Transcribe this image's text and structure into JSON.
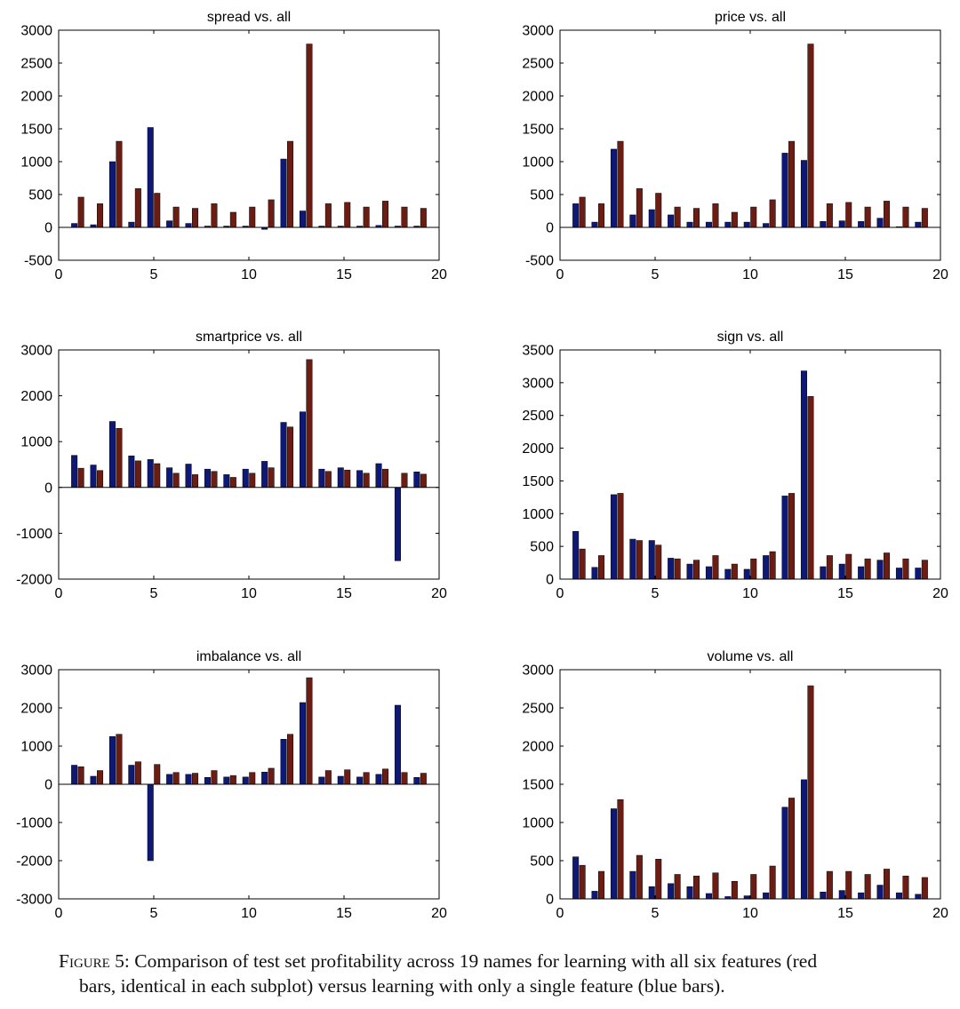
{
  "figure": {
    "caption_label": "Figure 5:",
    "caption_line1": " Comparison of test set profitability across 19 names for learning with all six features (red",
    "caption_line2": "bars, identical in each subplot) versus learning with only a single feature (blue bars)."
  },
  "colors": {
    "single_feature": "#0e1877",
    "all_features": "#6b1d14"
  },
  "chart_data": [
    {
      "type": "bar",
      "title": "spread vs. all",
      "x": [
        1,
        2,
        3,
        4,
        5,
        6,
        7,
        8,
        9,
        10,
        11,
        12,
        13,
        14,
        15,
        16,
        17,
        18,
        19
      ],
      "xlim": [
        0,
        20
      ],
      "xticks": [
        0,
        5,
        10,
        15,
        20
      ],
      "ylim": [
        -500,
        3000
      ],
      "yticks": [
        -500,
        0,
        500,
        1000,
        1500,
        2000,
        2500,
        3000
      ],
      "series": [
        {
          "color": "#0e1877",
          "values": [
            60,
            40,
            1000,
            80,
            1520,
            100,
            60,
            20,
            20,
            20,
            -30,
            1040,
            250,
            20,
            20,
            20,
            30,
            20,
            20
          ]
        },
        {
          "color": "#6b1d14",
          "values": [
            460,
            360,
            1310,
            590,
            520,
            310,
            290,
            360,
            230,
            310,
            420,
            1310,
            2790,
            360,
            380,
            310,
            400,
            310,
            290
          ]
        }
      ]
    },
    {
      "type": "bar",
      "title": "price vs. all",
      "x": [
        1,
        2,
        3,
        4,
        5,
        6,
        7,
        8,
        9,
        10,
        11,
        12,
        13,
        14,
        15,
        16,
        17,
        18,
        19
      ],
      "xlim": [
        0,
        20
      ],
      "xticks": [
        0,
        5,
        10,
        15,
        20
      ],
      "ylim": [
        -500,
        3000
      ],
      "yticks": [
        -500,
        0,
        500,
        1000,
        1500,
        2000,
        2500,
        3000
      ],
      "series": [
        {
          "color": "#0e1877",
          "values": [
            360,
            80,
            1190,
            190,
            270,
            190,
            80,
            80,
            80,
            80,
            60,
            1130,
            1020,
            90,
            100,
            90,
            140,
            10,
            80
          ]
        },
        {
          "color": "#6b1d14",
          "values": [
            460,
            360,
            1310,
            590,
            520,
            310,
            290,
            360,
            230,
            310,
            420,
            1310,
            2790,
            360,
            380,
            310,
            400,
            310,
            290
          ]
        }
      ]
    },
    {
      "type": "bar",
      "title": "smartprice vs. all",
      "x": [
        1,
        2,
        3,
        4,
        5,
        6,
        7,
        8,
        9,
        10,
        11,
        12,
        13,
        14,
        15,
        16,
        17,
        18,
        19
      ],
      "xlim": [
        0,
        20
      ],
      "xticks": [
        0,
        5,
        10,
        15,
        20
      ],
      "ylim": [
        -2000,
        3000
      ],
      "yticks": [
        -2000,
        -1000,
        0,
        1000,
        2000,
        3000
      ],
      "series": [
        {
          "color": "#0e1877",
          "values": [
            700,
            490,
            1440,
            690,
            610,
            430,
            510,
            400,
            280,
            400,
            570,
            1420,
            1650,
            400,
            430,
            370,
            520,
            -1600,
            340
          ]
        },
        {
          "color": "#6b1d14",
          "values": [
            420,
            370,
            1290,
            580,
            520,
            310,
            280,
            350,
            220,
            310,
            430,
            1320,
            2790,
            350,
            380,
            310,
            400,
            310,
            290
          ]
        }
      ]
    },
    {
      "type": "bar",
      "title": "sign vs. all",
      "x": [
        1,
        2,
        3,
        4,
        5,
        6,
        7,
        8,
        9,
        10,
        11,
        12,
        13,
        14,
        15,
        16,
        17,
        18,
        19
      ],
      "xlim": [
        0,
        20
      ],
      "xticks": [
        0,
        5,
        10,
        15,
        20
      ],
      "ylim": [
        0,
        3500
      ],
      "yticks": [
        0,
        500,
        1000,
        1500,
        2000,
        2500,
        3000,
        3500
      ],
      "series": [
        {
          "color": "#0e1877",
          "values": [
            730,
            180,
            1290,
            610,
            590,
            320,
            230,
            190,
            150,
            150,
            360,
            1270,
            3180,
            190,
            230,
            190,
            290,
            170,
            170
          ]
        },
        {
          "color": "#6b1d14",
          "values": [
            460,
            360,
            1310,
            590,
            520,
            310,
            290,
            360,
            230,
            310,
            420,
            1310,
            2790,
            360,
            380,
            310,
            400,
            310,
            290
          ]
        }
      ]
    },
    {
      "type": "bar",
      "title": "imbalance vs. all",
      "x": [
        1,
        2,
        3,
        4,
        5,
        6,
        7,
        8,
        9,
        10,
        11,
        12,
        13,
        14,
        15,
        16,
        17,
        18,
        19
      ],
      "xlim": [
        0,
        20
      ],
      "xticks": [
        0,
        5,
        10,
        15,
        20
      ],
      "ylim": [
        -3000,
        3000
      ],
      "yticks": [
        -3000,
        -2000,
        -1000,
        0,
        1000,
        2000,
        3000
      ],
      "series": [
        {
          "color": "#0e1877",
          "values": [
            500,
            210,
            1250,
            500,
            -2000,
            260,
            260,
            180,
            190,
            190,
            320,
            1180,
            2140,
            190,
            210,
            190,
            260,
            2070,
            180
          ]
        },
        {
          "color": "#6b1d14",
          "values": [
            460,
            360,
            1310,
            590,
            520,
            310,
            290,
            360,
            230,
            310,
            420,
            1310,
            2790,
            360,
            380,
            310,
            400,
            310,
            290
          ]
        }
      ]
    },
    {
      "type": "bar",
      "title": "volume vs. all",
      "x": [
        1,
        2,
        3,
        4,
        5,
        6,
        7,
        8,
        9,
        10,
        11,
        12,
        13,
        14,
        15,
        16,
        17,
        18,
        19
      ],
      "xlim": [
        0,
        20
      ],
      "xticks": [
        0,
        5,
        10,
        15,
        20
      ],
      "ylim": [
        0,
        3000
      ],
      "yticks": [
        0,
        500,
        1000,
        1500,
        2000,
        2500,
        3000
      ],
      "series": [
        {
          "color": "#0e1877",
          "values": [
            550,
            100,
            1180,
            360,
            160,
            200,
            160,
            70,
            30,
            40,
            80,
            1200,
            1560,
            90,
            110,
            80,
            180,
            80,
            60
          ]
        },
        {
          "color": "#6b1d14",
          "values": [
            440,
            360,
            1300,
            570,
            520,
            320,
            300,
            340,
            230,
            320,
            430,
            1320,
            2790,
            360,
            360,
            320,
            390,
            300,
            280
          ]
        }
      ]
    }
  ]
}
